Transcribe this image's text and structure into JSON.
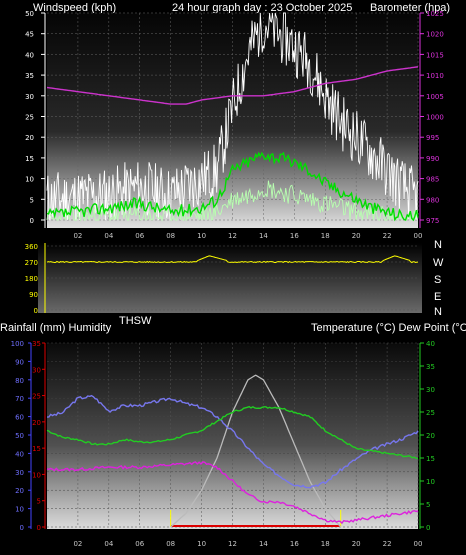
{
  "header": {
    "left_label": "Windspeed (kph)",
    "center_title": "24 hour graph day : 23 October 2025",
    "right_label": "Barometer (hpa)"
  },
  "direction_panel": {
    "compass_labels": [
      "N",
      "W",
      "S",
      "E",
      "N"
    ],
    "thsw_label": "THSW"
  },
  "bottom_header": {
    "left_label": "Rainfall (mm)  Humidity",
    "right_label": "Temperature (°C) Dew Point (°C)"
  },
  "colors": {
    "background": "#000000",
    "wind_gust": "#ffffff",
    "wind_avg": "#00dd00",
    "wind_low": "#b8ffb0",
    "barometer": "#cc33cc",
    "direction": "#ffff00",
    "humidity": "#7777ee",
    "temperature": "#22cc22",
    "dewpoint": "#dd22dd",
    "solar": "#bbbbbb",
    "rainfall": "#dd0000"
  },
  "chart_data": [
    {
      "type": "line",
      "name": "windspeed-barometer",
      "x_ticks": [
        "02",
        "04",
        "06",
        "08",
        "10",
        "12",
        "14",
        "16",
        "18",
        "20",
        "22",
        "00"
      ],
      "xlim": [
        0,
        24
      ],
      "y_left_ticks": [
        0,
        5,
        10,
        15,
        20,
        25,
        30,
        35,
        40,
        45,
        50
      ],
      "ylim_left": [
        0,
        50
      ],
      "y_right_ticks": [
        975,
        980,
        985,
        990,
        995,
        1000,
        1005,
        1010,
        1015,
        1020,
        1025
      ],
      "ylim_right": [
        975,
        1025
      ],
      "barometer": {
        "x": [
          0,
          2,
          4,
          6,
          8,
          9,
          10,
          12,
          14,
          16,
          18,
          20,
          22,
          24
        ],
        "y": [
          1007,
          1006,
          1005,
          1004,
          1003,
          1003,
          1004,
          1005,
          1005,
          1006,
          1008,
          1009,
          1011,
          1012
        ]
      },
      "wind_gust_envelope": {
        "x": [
          0,
          4,
          6,
          8,
          10,
          11,
          12,
          13,
          14,
          15,
          16,
          17,
          18,
          19,
          20,
          21,
          22,
          23,
          24
        ],
        "y": [
          5,
          6,
          8,
          6,
          10,
          12,
          27,
          40,
          48,
          45,
          42,
          38,
          30,
          24,
          20,
          16,
          12,
          8,
          5
        ]
      },
      "wind_avg": {
        "x": [
          0,
          2,
          4,
          6,
          8,
          10,
          11,
          12,
          13,
          14,
          15,
          16,
          17,
          18,
          19,
          20,
          21,
          22,
          23,
          24
        ],
        "y": [
          1,
          2,
          3,
          4,
          2,
          3,
          5,
          12,
          14,
          16,
          15,
          14,
          12,
          9,
          7,
          5,
          3,
          2,
          1,
          1
        ]
      },
      "wind_low": {
        "x": [
          0,
          4,
          8,
          10,
          11,
          12,
          13,
          14,
          15,
          16,
          17,
          18,
          19,
          20,
          21,
          22,
          23,
          24
        ],
        "y": [
          0,
          1,
          1,
          1,
          2,
          5,
          6,
          8,
          7,
          6,
          5,
          4,
          3,
          2,
          1,
          1,
          0,
          0
        ]
      }
    },
    {
      "type": "line",
      "name": "wind-direction",
      "x_ticks": [],
      "xlim": [
        0,
        24
      ],
      "y_ticks": [
        0,
        90,
        180,
        270,
        360
      ],
      "ylim": [
        0,
        360
      ],
      "direction": {
        "x": [
          0,
          4,
          6,
          8,
          9.5,
          10.5,
          12,
          14,
          16,
          18,
          20,
          21.5,
          22.5,
          24
        ],
        "y": [
          270,
          270,
          265,
          270,
          270,
          305,
          270,
          270,
          268,
          272,
          270,
          270,
          305,
          265
        ]
      }
    },
    {
      "type": "line",
      "name": "rain-humidity-temperature",
      "x_ticks": [
        "02",
        "04",
        "06",
        "08",
        "10",
        "12",
        "14",
        "16",
        "18",
        "20",
        "22",
        "00"
      ],
      "xlim": [
        0,
        24
      ],
      "y_humidity_ticks": [
        0,
        10,
        20,
        30,
        40,
        50,
        60,
        70,
        80,
        90,
        100
      ],
      "ylim_humidity": [
        0,
        100
      ],
      "y_rain_ticks": [
        0,
        5,
        10,
        15,
        20,
        25,
        30,
        35
      ],
      "ylim_rain": [
        0,
        35
      ],
      "y_right_ticks": [
        0,
        5,
        10,
        15,
        20,
        25,
        30,
        35,
        40
      ],
      "ylim_right": [
        0,
        40
      ],
      "humidity": {
        "x": [
          0,
          1,
          2,
          3,
          4,
          5,
          6,
          7,
          8,
          9,
          10,
          11,
          12,
          13,
          14,
          15,
          16,
          17,
          18,
          19,
          20,
          21,
          22,
          23,
          24
        ],
        "y": [
          60,
          62,
          70,
          71,
          63,
          66,
          66,
          68,
          70,
          67,
          65,
          60,
          52,
          43,
          34,
          28,
          23,
          22,
          24,
          31,
          37,
          42,
          45,
          48,
          52
        ]
      },
      "temperature": {
        "x": [
          0,
          1,
          2,
          3,
          4,
          5,
          6,
          7,
          8,
          9,
          10,
          11,
          12,
          13,
          14,
          15,
          16,
          17,
          18,
          19,
          20,
          21,
          22,
          23,
          24
        ],
        "y": [
          21,
          19.5,
          19,
          18,
          18,
          19,
          18.5,
          18.5,
          19,
          20,
          21,
          23,
          25,
          26,
          26,
          26,
          25,
          24,
          21,
          19,
          17,
          16.5,
          16,
          15.5,
          15
        ]
      },
      "dewpoint": {
        "x": [
          0,
          2,
          4,
          6,
          8,
          10,
          11,
          12,
          13,
          14,
          15,
          16,
          17,
          18,
          19,
          20,
          21,
          22,
          23,
          24
        ],
        "y": [
          12.5,
          12.5,
          13,
          13,
          13.5,
          14,
          13,
          10,
          7,
          5.5,
          5.5,
          4.5,
          3,
          1.5,
          1,
          1.5,
          2,
          2.5,
          3,
          3.5
        ]
      },
      "solar": {
        "x": [
          8,
          9,
          10,
          11,
          12,
          13,
          13.5,
          14,
          15,
          16,
          17,
          18,
          19
        ],
        "y": [
          0,
          3,
          8,
          15,
          25,
          32,
          33,
          32,
          26,
          18,
          10,
          4,
          0
        ]
      },
      "rainfall": {
        "x": [
          8,
          19
        ],
        "y": [
          0,
          0
        ]
      },
      "day_markers": [
        8,
        19
      ]
    }
  ]
}
